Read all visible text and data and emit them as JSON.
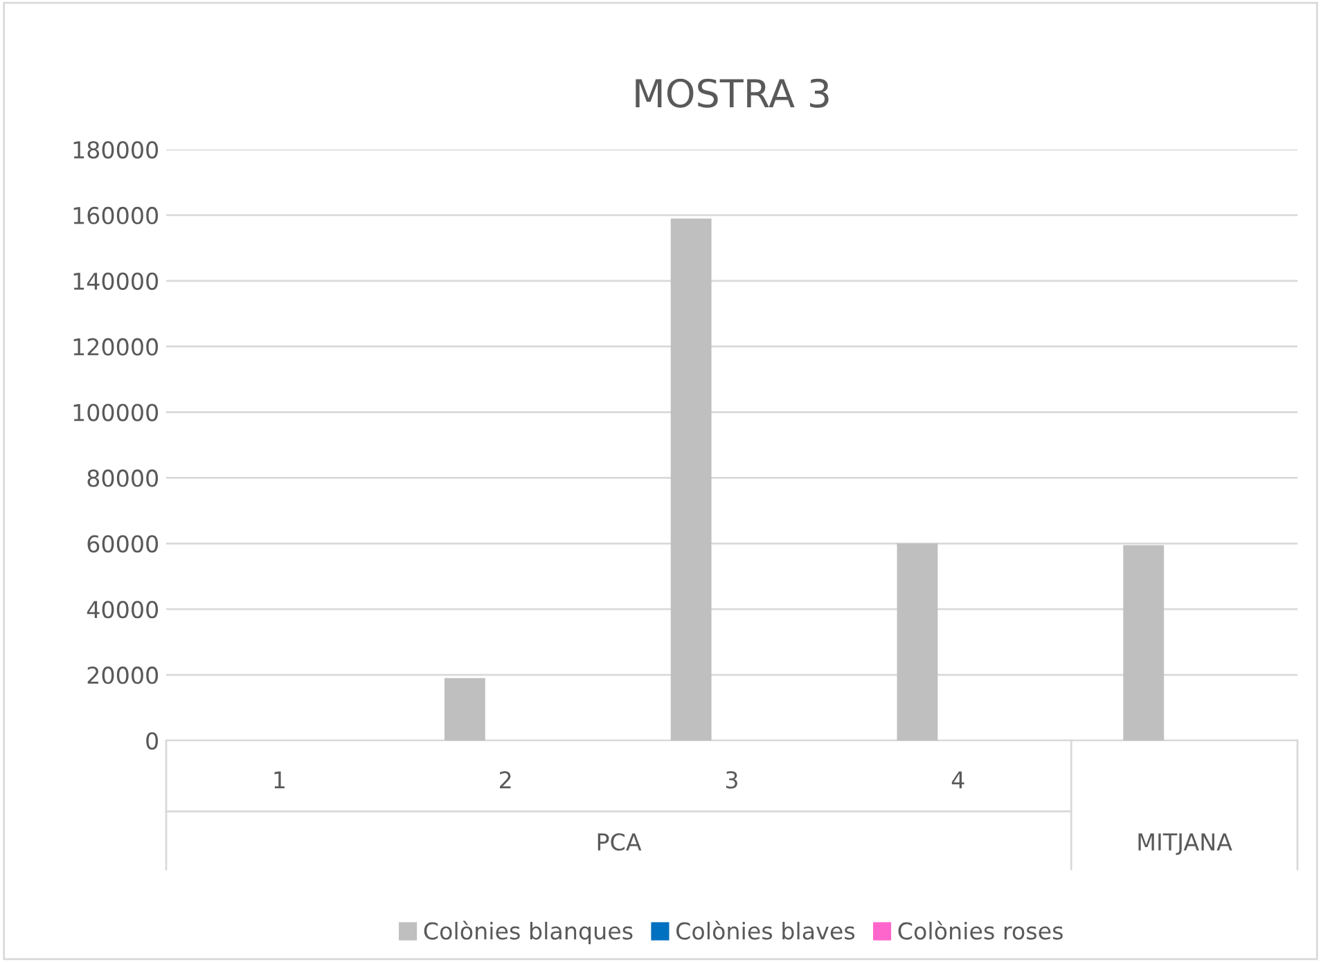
{
  "chart_data": {
    "type": "bar",
    "title": "MOSTRA 3",
    "categories": [
      "1",
      "2",
      "3",
      "4",
      null
    ],
    "series": [
      {
        "name": "Colònies blanques",
        "color": "#bfbfbf",
        "values": [
          0,
          19000,
          159000,
          60000,
          59500
        ]
      },
      {
        "name": "Colònies blaves",
        "color": "#0070c0",
        "values": [
          0,
          0,
          0,
          0,
          0
        ]
      },
      {
        "name": "Colònies roses",
        "color": "#ff66cc",
        "values": [
          0,
          0,
          0,
          0,
          0
        ]
      }
    ],
    "annotations": [
      "PCA",
      "MITJANA"
    ],
    "ylim": [
      0,
      180000
    ],
    "yticks": [
      0,
      20000,
      40000,
      60000,
      80000,
      100000,
      120000,
      140000,
      160000,
      180000
    ],
    "grid": "y",
    "legend": "bottom"
  }
}
